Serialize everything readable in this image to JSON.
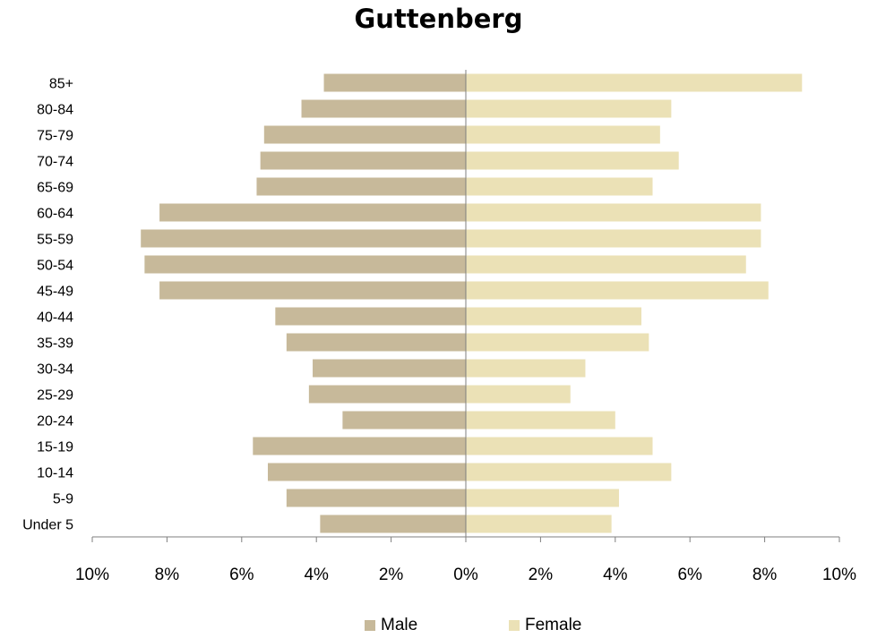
{
  "chart_data": {
    "type": "bar",
    "orientation": "horizontal",
    "title": "Guttenberg",
    "categories": [
      "85+",
      "80-84",
      "75-79",
      "70-74",
      "65-69",
      "60-64",
      "55-59",
      "50-54",
      "45-49",
      "40-44",
      "35-39",
      "30-34",
      "25-29",
      "20-24",
      "15-19",
      "10-14",
      "5-9",
      "Under 5"
    ],
    "series": [
      {
        "name": "Male",
        "color": "#c7b99a",
        "values": [
          3.8,
          4.4,
          5.4,
          5.5,
          5.6,
          8.2,
          8.7,
          8.6,
          8.2,
          5.1,
          4.8,
          4.1,
          4.2,
          3.3,
          5.7,
          5.3,
          4.8,
          3.9
        ]
      },
      {
        "name": "Female",
        "color": "#ebe1b6",
        "values": [
          9.0,
          5.5,
          5.2,
          5.7,
          5.0,
          7.9,
          7.9,
          7.5,
          8.1,
          4.7,
          4.9,
          3.2,
          2.8,
          4.0,
          5.0,
          5.5,
          4.1,
          3.9
        ]
      }
    ],
    "x_ticks": [
      "10%",
      "8%",
      "6%",
      "4%",
      "2%",
      "0%",
      "2%",
      "4%",
      "6%",
      "8%",
      "10%"
    ],
    "xlim": [
      -10,
      10
    ],
    "unit": "%",
    "grid": false,
    "legend_position": "bottom"
  }
}
